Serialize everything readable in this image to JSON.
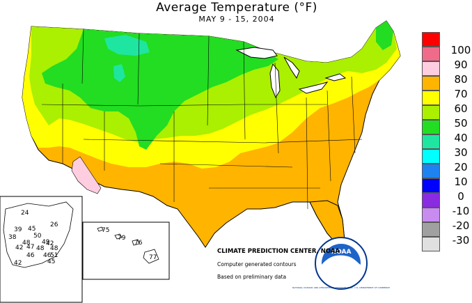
{
  "title": "Average Temperature (°F)",
  "subtitle": "MAY 9 - 15, 2004",
  "credits": {
    "org": "CLIMATE PREDICTION CENTER, NOAA",
    "line2": "Computer generated contours",
    "line3": "Based on preliminary data"
  },
  "logo": {
    "text": "NOAA",
    "ring_text": "NATIONAL OCEANIC AND ATMOSPHERIC ADMINISTRATION · U.S. DEPARTMENT OF COMMERCE"
  },
  "legend": [
    {
      "label": "100",
      "color": "#ff0000"
    },
    {
      "label": "90",
      "color": "#f06b8a"
    },
    {
      "label": "80",
      "color": "#ffcde0"
    },
    {
      "label": "70",
      "color": "#ffb400"
    },
    {
      "label": "60",
      "color": "#ffff00"
    },
    {
      "label": "50",
      "color": "#aaf000"
    },
    {
      "label": "40",
      "color": "#22dd22"
    },
    {
      "label": "30",
      "color": "#1ee6a0"
    },
    {
      "label": "20",
      "color": "#00ffff"
    },
    {
      "label": "10",
      "color": "#1e82f0"
    },
    {
      "label": "0",
      "color": "#0000ff"
    },
    {
      "label": "-10",
      "color": "#8a2be2"
    },
    {
      "label": "-20",
      "color": "#c88cf0"
    },
    {
      "label": "-30",
      "color": "#a0a0a0"
    },
    {
      "label": "",
      "color": "#e0e0e0"
    }
  ],
  "alaska_values": [
    "24",
    "26",
    "39",
    "45",
    "50",
    "38",
    "48",
    "49",
    "42",
    "47",
    "48",
    "48",
    "42",
    "46",
    "46",
    "51",
    "45",
    "42"
  ],
  "hawaii_values": [
    "75",
    "79",
    "76",
    "77"
  ]
}
